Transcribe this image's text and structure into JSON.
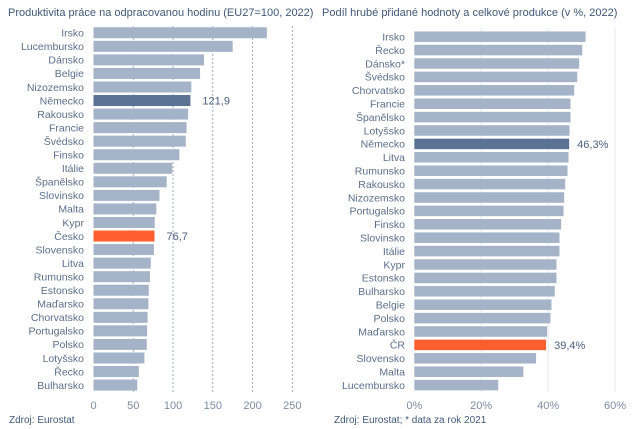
{
  "colors": {
    "bar": "#a4b3c7",
    "highlight_dark": "#5a7394",
    "highlight_orange": "#ff5f2e",
    "text": "#4a5f80"
  },
  "chart_data": [
    {
      "type": "bar",
      "orientation": "horizontal",
      "title": "Produktivita práce na odpracovanou hodinu (EU27=100, 2022)",
      "categories": [
        "Irsko",
        "Lucembursko",
        "Dánsko",
        "Belgie",
        "Nizozemsko",
        "Německo",
        "Rakousko",
        "Francie",
        "Švédsko",
        "Finsko",
        "Itálie",
        "Španělsko",
        "Slovinsko",
        "Malta",
        "Kypr",
        "Česko",
        "Slovensko",
        "Litva",
        "Rumunsko",
        "Estonsko",
        "Maďarsko",
        "Chorvatsko",
        "Portugalsko",
        "Polsko",
        "Lotyšsko",
        "Řecko",
        "Bulharsko"
      ],
      "values": [
        218,
        175,
        139,
        134,
        123,
        121.9,
        119,
        117,
        116,
        108,
        99,
        92,
        83,
        79,
        77,
        76.7,
        76,
        72,
        71,
        69.5,
        69,
        68,
        67.5,
        67,
        64,
        57,
        55
      ],
      "highlights": {
        "Německo": {
          "color": "dark",
          "label": "121,9"
        },
        "Česko": {
          "color": "orange",
          "label": "76,7"
        }
      },
      "xlim": [
        0,
        250
      ],
      "xticks": [
        "0",
        "50",
        "100",
        "150",
        "200",
        "250"
      ],
      "grid": "vertical dashed",
      "source": "Zdroj: Eurostat"
    },
    {
      "type": "bar",
      "orientation": "horizontal",
      "title": "Podíl hrubé přidané hodnoty a celkové produkce (v %, 2022)",
      "categories": [
        "Irsko",
        "Řecko",
        "Dánsko*",
        "Švédsko",
        "Chorvatsko",
        "Francie",
        "Španělsko",
        "Lotyšsko",
        "Německo",
        "Litva",
        "Rumunsko",
        "Rakousko",
        "Nizozemsko",
        "Portugalsko",
        "Finsko",
        "Slovinsko",
        "Itálie",
        "Kypr",
        "Estonsko",
        "Bulharsko",
        "Belgie",
        "Polsko",
        "Maďarsko",
        "ČR",
        "Slovensko",
        "Malta",
        "Lucembursko"
      ],
      "values": [
        51.2,
        50.2,
        49.3,
        48.7,
        47.8,
        46.7,
        46.7,
        46.4,
        46.3,
        46.1,
        45.8,
        45.1,
        44.8,
        44.6,
        43.9,
        43.4,
        43.4,
        42.5,
        42.5,
        42.0,
        41.0,
        40.7,
        39.7,
        39.4,
        36.4,
        32.6,
        25.1
      ],
      "highlights": {
        "Německo": {
          "color": "dark",
          "label": "46,3%"
        },
        "ČR": {
          "color": "orange",
          "label": "39,4%"
        }
      },
      "xlim": [
        0,
        60
      ],
      "xticks": [
        "0%",
        "20%",
        "40%",
        "60%"
      ],
      "grid": "vertical solid",
      "source": "Zdroj: Eurostat; * data za rok 2021"
    }
  ]
}
